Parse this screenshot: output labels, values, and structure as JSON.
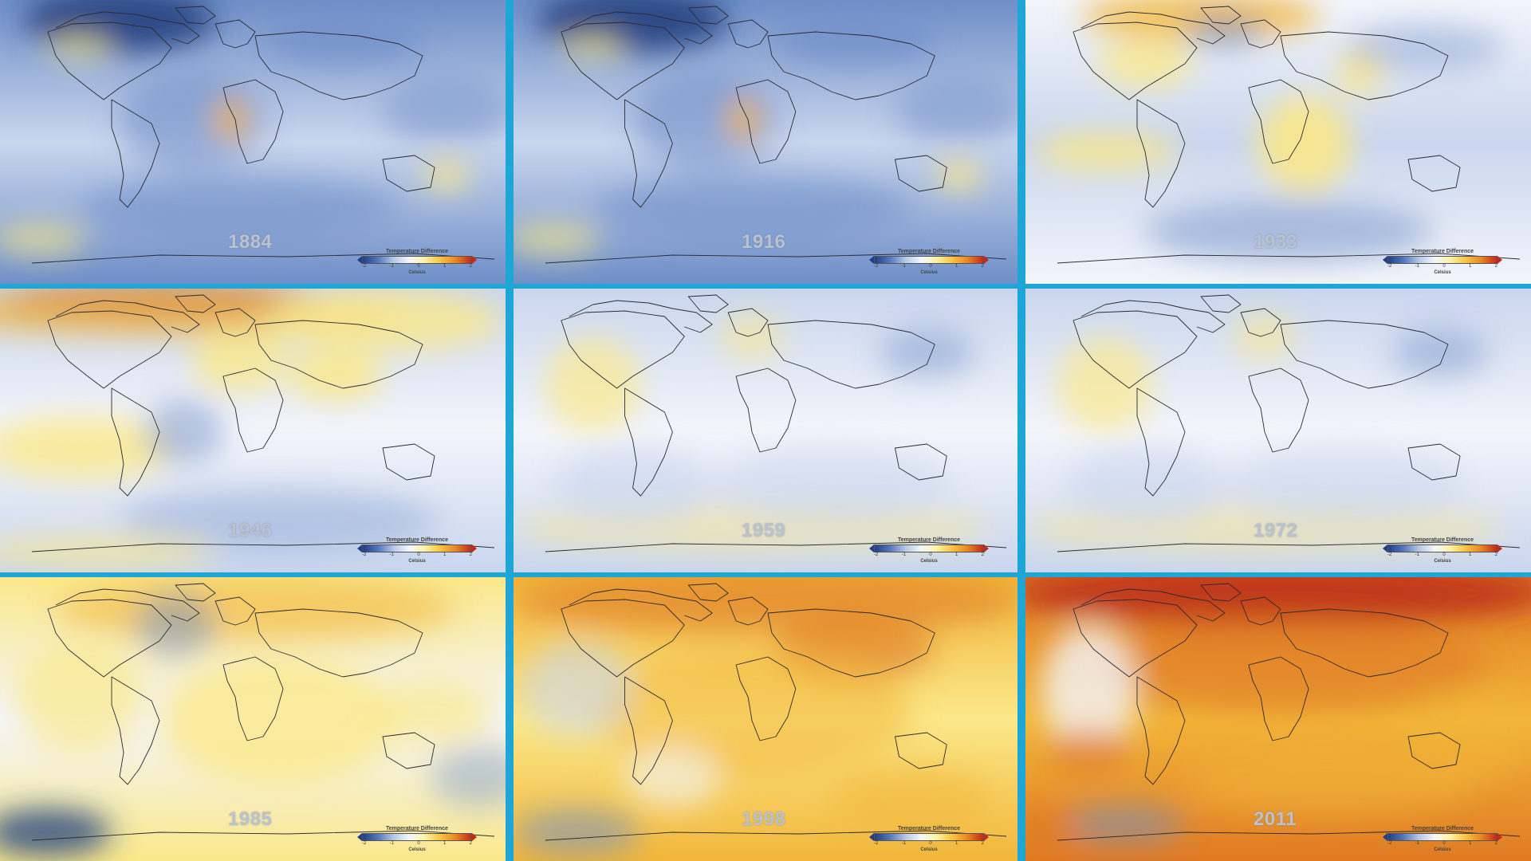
{
  "panels": [
    {
      "year": "1884",
      "mood": "cold"
    },
    {
      "year": "1916",
      "mood": "cold"
    },
    {
      "year": "1933",
      "mood": "coolwarm"
    },
    {
      "year": "1946",
      "mood": "mixed"
    },
    {
      "year": "1959",
      "mood": "neutral"
    },
    {
      "year": "1972",
      "mood": "neutral"
    },
    {
      "year": "1985",
      "mood": "mild"
    },
    {
      "year": "1998",
      "mood": "warm"
    },
    {
      "year": "2011",
      "mood": "hot"
    }
  ],
  "legend": {
    "title": "Temperature Difference",
    "ticks": [
      "-2",
      "-1",
      "0",
      "1",
      "2"
    ],
    "unit": "Celsius"
  },
  "colors": {
    "separator": "#1ea6d6",
    "cold_strong": "#21417f",
    "cold": "#6f8fc8",
    "cool": "#c9d6ee",
    "neutral": "#f3f5fb",
    "warm_light": "#fbe88a",
    "warm": "#f2b63a",
    "hot": "#e07a24",
    "very_hot": "#b8271a"
  }
}
